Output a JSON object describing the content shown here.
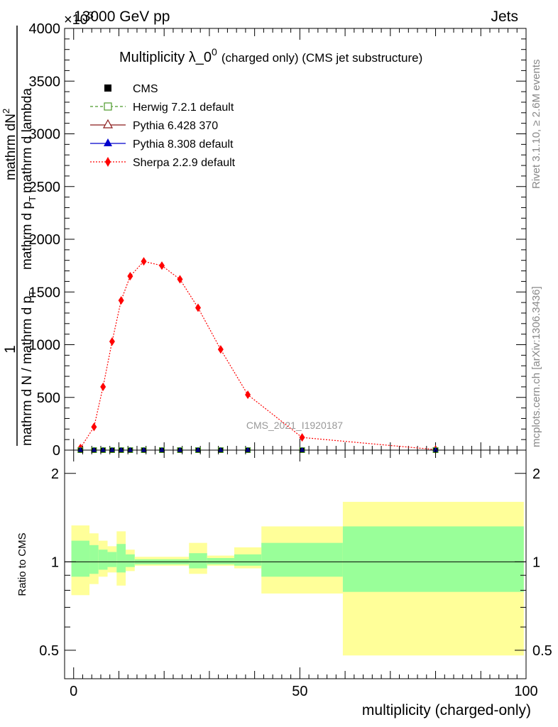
{
  "header": {
    "left_label": "13000 GeV pp",
    "right_label": "Jets",
    "exponent_label": "×10",
    "exponent_power": "3"
  },
  "side_labels": {
    "rivet": "Rivet 3.1.10, ≥ 2.6M events",
    "mcplots": "mcplots.cern.ch [arXiv:1306.3436]"
  },
  "watermark": "CMS_2021_I1920187",
  "colors": {
    "herwig": "#4c9a2a",
    "pythia6": "#8b1a1a",
    "pythia8": "#0000cc",
    "sherpa": "#ff0000",
    "band_outer": "#ffff99",
    "band_inner": "#99ff99"
  },
  "chart_data": [
    {
      "type": "line",
      "title": "Multiplicity λ_0",
      "title_sup": "0",
      "title_suffix": "(charged only) (CMS jet substructure)",
      "xlabel": "multiplicity (charged-only)",
      "ylabel_numer_left": "1",
      "ylabel_left": "mathrm d N / mathrm d p",
      "ylabel_sub": "T",
      "ylabel_right": "mathrm dN",
      "ylabel_right_sup": "2",
      "ylabel_right2": "mathrm d p",
      "ylabel_right2_sub": "T",
      "ylabel_right3": "mathrm d lambda",
      "xlim": [
        -2,
        100
      ],
      "ylim": [
        0,
        4000
      ],
      "y_scale_factor": 1000,
      "xticks": [
        0,
        50,
        100
      ],
      "yticks": [
        0,
        500,
        1000,
        1500,
        2000,
        2500,
        3000,
        3500,
        4000
      ],
      "legend_position": "top-left",
      "series": [
        {
          "name": "CMS",
          "marker": "filled-square",
          "x": [
            1.5,
            4.5,
            6.5,
            8.5,
            10.5,
            12.5,
            15.5,
            19.5,
            23.5,
            27.5,
            32.5,
            38.5,
            50.5,
            80
          ],
          "y": [
            0,
            0,
            0,
            0,
            0,
            0,
            0,
            0,
            0,
            0,
            0,
            0,
            0,
            0
          ]
        },
        {
          "name": "Herwig 7.2.1 default",
          "marker": "open-square",
          "line": "dashed",
          "x": [
            1.5,
            4.5,
            6.5,
            8.5,
            10.5,
            12.5,
            15.5,
            19.5,
            23.5,
            27.5,
            32.5,
            38.5,
            50.5,
            80
          ],
          "y": [
            0,
            0,
            0,
            0,
            0,
            0,
            0,
            0,
            0,
            0,
            0,
            0,
            0,
            0
          ]
        },
        {
          "name": "Pythia 6.428 370",
          "marker": "open-triangle",
          "line": "solid",
          "x": [
            1.5,
            4.5,
            6.5,
            8.5,
            10.5,
            12.5,
            15.5,
            19.5,
            23.5,
            27.5,
            32.5,
            38.5,
            50.5,
            80
          ],
          "y": [
            0,
            0,
            0,
            0,
            0,
            0,
            0,
            0,
            0,
            0,
            0,
            0,
            0,
            0
          ]
        },
        {
          "name": "Pythia 8.308 default",
          "marker": "filled-triangle",
          "line": "solid",
          "x": [
            1.5,
            4.5,
            6.5,
            8.5,
            10.5,
            12.5,
            15.5,
            19.5,
            23.5,
            27.5,
            32.5,
            38.5,
            50.5,
            80
          ],
          "y": [
            0,
            0,
            0,
            0,
            0,
            0,
            0,
            0,
            0,
            0,
            0,
            0,
            0,
            0
          ]
        },
        {
          "name": "Sherpa 2.2.9 default",
          "marker": "diamond",
          "line": "dotted",
          "x": [
            1.5,
            4.5,
            6.5,
            8.5,
            10.5,
            12.5,
            15.5,
            19.5,
            23.5,
            27.5,
            32.5,
            38.5,
            50.5,
            80
          ],
          "y": [
            20,
            220,
            600,
            1030,
            1420,
            1650,
            1790,
            1750,
            1620,
            1350,
            955,
            525,
            120,
            5
          ]
        }
      ]
    },
    {
      "type": "area",
      "title": "",
      "xlabel": "multiplicity (charged-only)",
      "ylabel": "Ratio to CMS",
      "xlim": [
        -2,
        100
      ],
      "ylim": [
        0.4,
        2.4
      ],
      "y_scale": "log",
      "xticks": [
        0,
        50,
        100
      ],
      "yticks": [
        0.5,
        1,
        2
      ],
      "reference_line": 1,
      "bins": [
        {
          "lo": -0.5,
          "hi": 3.5,
          "outer": [
            0.77,
            1.33
          ],
          "inner": [
            0.89,
            1.18
          ]
        },
        {
          "lo": 3.5,
          "hi": 5.5,
          "outer": [
            0.84,
            1.25
          ],
          "inner": [
            0.91,
            1.14
          ]
        },
        {
          "lo": 5.5,
          "hi": 7.5,
          "outer": [
            0.89,
            1.18
          ],
          "inner": [
            0.94,
            1.1
          ]
        },
        {
          "lo": 7.5,
          "hi": 9.5,
          "outer": [
            0.92,
            1.13
          ],
          "inner": [
            0.96,
            1.08
          ]
        },
        {
          "lo": 9.5,
          "hi": 11.5,
          "outer": [
            0.83,
            1.27
          ],
          "inner": [
            0.92,
            1.15
          ]
        },
        {
          "lo": 11.5,
          "hi": 13.5,
          "outer": [
            0.93,
            1.1
          ],
          "inner": [
            0.96,
            1.06
          ]
        },
        {
          "lo": 13.5,
          "hi": 25.5,
          "outer": [
            0.97,
            1.04
          ],
          "inner": [
            0.98,
            1.02
          ]
        },
        {
          "lo": 25.5,
          "hi": 29.5,
          "outer": [
            0.91,
            1.16
          ],
          "inner": [
            0.95,
            1.07
          ]
        },
        {
          "lo": 29.5,
          "hi": 35.5,
          "outer": [
            0.97,
            1.05
          ],
          "inner": [
            0.98,
            1.03
          ]
        },
        {
          "lo": 35.5,
          "hi": 41.5,
          "outer": [
            0.95,
            1.12
          ],
          "inner": [
            0.97,
            1.06
          ]
        },
        {
          "lo": 41.5,
          "hi": 59.5,
          "outer": [
            0.78,
            1.32
          ],
          "inner": [
            0.89,
            1.16
          ]
        },
        {
          "lo": 59.5,
          "hi": 99.5,
          "outer": [
            0.48,
            1.6
          ],
          "inner": [
            0.79,
            1.32
          ]
        }
      ]
    }
  ]
}
